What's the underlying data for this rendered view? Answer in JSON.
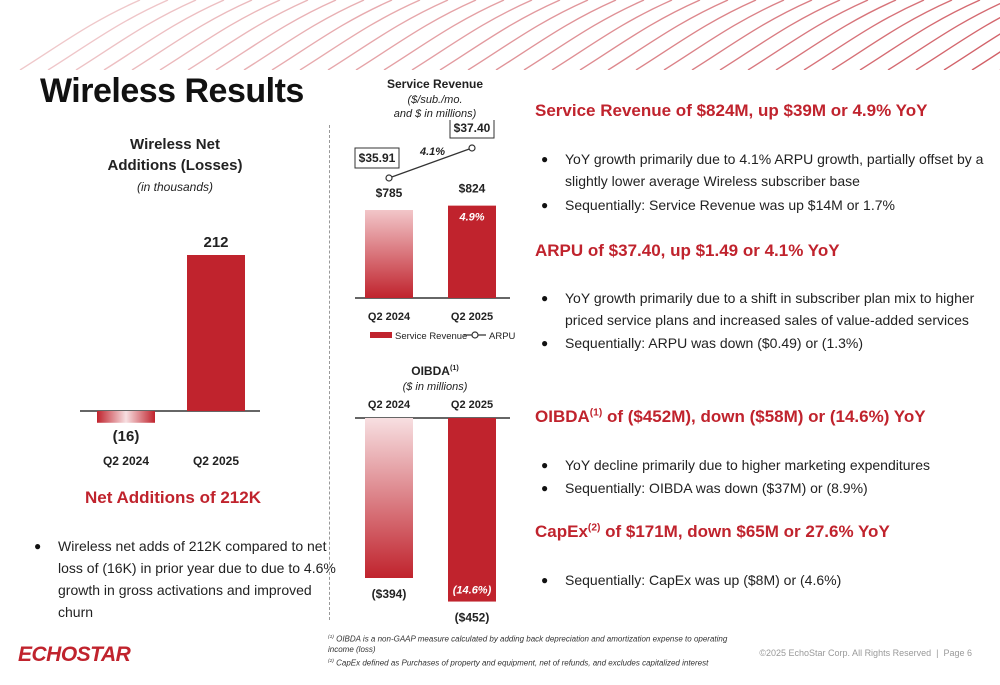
{
  "title": "Wireless Results",
  "net_adds_chart": {
    "title_line1": "Wireless Net",
    "title_line2": "Additions (Losses)",
    "subtitle": "(in thousands)",
    "chart_data": {
      "type": "bar",
      "categories": [
        "Q2 2024",
        "Q2 2025"
      ],
      "values": [
        -16,
        212
      ],
      "labels": [
        "(16)",
        "212"
      ],
      "title": "Wireless Net Additions (Losses)",
      "ylabel": "in thousands"
    }
  },
  "net_adds_section": {
    "heading": "Net Additions of 212K",
    "bullet": "Wireless net adds of 212K compared to net loss of (16K) in prior year due to due to 4.6% growth in gross activations and improved churn"
  },
  "service_revenue_chart": {
    "title": "Service Revenue",
    "subtitle_line1": "($/sub./mo.",
    "subtitle_line2": "and $ in millions)",
    "arpu_growth": "4.1%",
    "bar_growth": "4.9%",
    "legend_bar": "Service Revenue",
    "legend_line": "ARPU",
    "chart_data": {
      "type": "bar",
      "categories": [
        "Q2 2024",
        "Q2 2025"
      ],
      "series": [
        {
          "name": "Service Revenue",
          "values": [
            785,
            824
          ],
          "labels": [
            "$785",
            "$824"
          ]
        },
        {
          "name": "ARPU",
          "values": [
            35.91,
            37.4
          ],
          "labels": [
            "$35.91",
            "$37.40"
          ]
        }
      ],
      "title": "Service Revenue"
    }
  },
  "oibda_chart": {
    "title": "OIBDA",
    "title_sup": "(1)",
    "subtitle": "($ in millions)",
    "bar_growth": "(14.6%)",
    "chart_data": {
      "type": "bar",
      "categories": [
        "Q2 2024",
        "Q2 2025"
      ],
      "values": [
        -394,
        -452
      ],
      "labels": [
        "($394)",
        "($452)"
      ],
      "title": "OIBDA"
    }
  },
  "right_sections": [
    {
      "heading": "Service Revenue of $824M, up $39M or 4.9% YoY",
      "bullets": [
        "YoY growth primarily due to 4.1% ARPU growth, partially offset by a slightly lower average Wireless subscriber base",
        "Sequentially: Service Revenue was up $14M or 1.7%"
      ]
    },
    {
      "heading": "ARPU of $37.40, up $1.49 or 4.1% YoY",
      "bullets": [
        "YoY growth primarily due to a shift in subscriber plan mix to higher priced service plans and increased sales of value-added services",
        "Sequentially: ARPU was down ($0.49) or (1.3%)"
      ]
    },
    {
      "heading_pre": "OIBDA",
      "heading_sup": "(1)",
      "heading_post": " of ($452M), down ($58M) or (14.6%) YoY",
      "bullets": [
        "YoY decline primarily due to higher marketing expenditures",
        "Sequentially: OIBDA was down ($37M) or (8.9%)"
      ]
    },
    {
      "heading_pre": "CapEx",
      "heading_sup": "(2)",
      "heading_post": " of $171M, down $65M or 27.6% YoY",
      "bullets": [
        "Sequentially: CapEx was up ($8M) or (4.6%)"
      ]
    }
  ],
  "footnotes": {
    "n1_mark": "(1)",
    "n1": "OIBDA is a non-GAAP measure calculated by adding back depreciation and amortization expense to operating income (loss)",
    "n2_mark": "(2)",
    "n2": "CapEx defined as Purchases of property and equipment, net of refunds, and excludes capitalized interest"
  },
  "footer": {
    "logo": "ECHOSTAR",
    "copyright": "©2025 EchoStar Corp. All Rights Reserved",
    "separator": "|",
    "page": "Page 6"
  },
  "colors": {
    "accent": "#c0232d",
    "accent_light": "#f2c6c9"
  }
}
